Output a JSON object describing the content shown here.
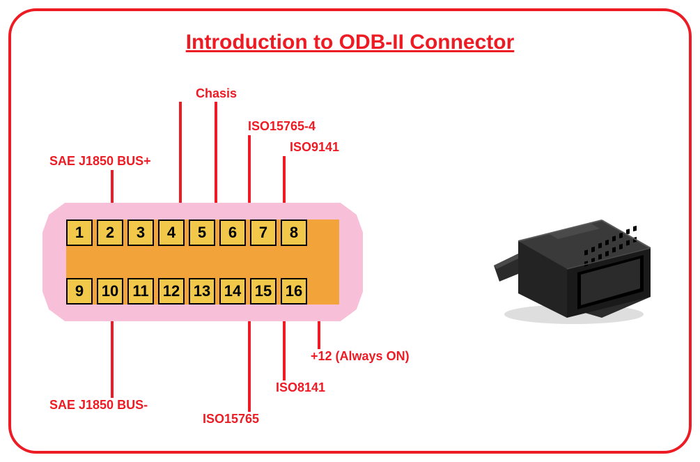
{
  "title": {
    "text": "Introduction to ODB-II Connector",
    "color": "#ed1c24",
    "font_size": 30
  },
  "frame": {
    "border_color": "#ed1c24",
    "border_width": 4,
    "border_radius": 40,
    "background": "#ffffff"
  },
  "connector_diagram": {
    "body_color": "#f8c0d8",
    "inner_color": "#f2a33a",
    "pin_fill": "#f2c84b",
    "pin_border": "#000000",
    "pin_text_color": "#000000",
    "pin_font_size": 22,
    "pins_top": [
      "1",
      "2",
      "3",
      "4",
      "5",
      "6",
      "7",
      "8"
    ],
    "pins_bottom": [
      "9",
      "10",
      "11",
      "12",
      "13",
      "14",
      "15",
      "16"
    ]
  },
  "labels": {
    "color": "#ed1c24",
    "font_size": 18,
    "line_color": "#ed1c24",
    "line_width": 4,
    "items": {
      "pin2": "SAE J1850 BUS+",
      "pin4_5": "Chasis",
      "pin6": "ISO15765-4",
      "pin7": "ISO9141",
      "pin10": "SAE J1850 BUS-",
      "pin14": "ISO15765",
      "pin15": "ISO8141",
      "pin16": "+12 (Always ON)"
    }
  },
  "physical_connector": {
    "body_color": "#2b2b2b",
    "face_color": "#3a3a3a",
    "highlight_color": "#5a5a5a",
    "pin_hole_color": "#000000",
    "shadow_color": "#6a6a6a"
  }
}
